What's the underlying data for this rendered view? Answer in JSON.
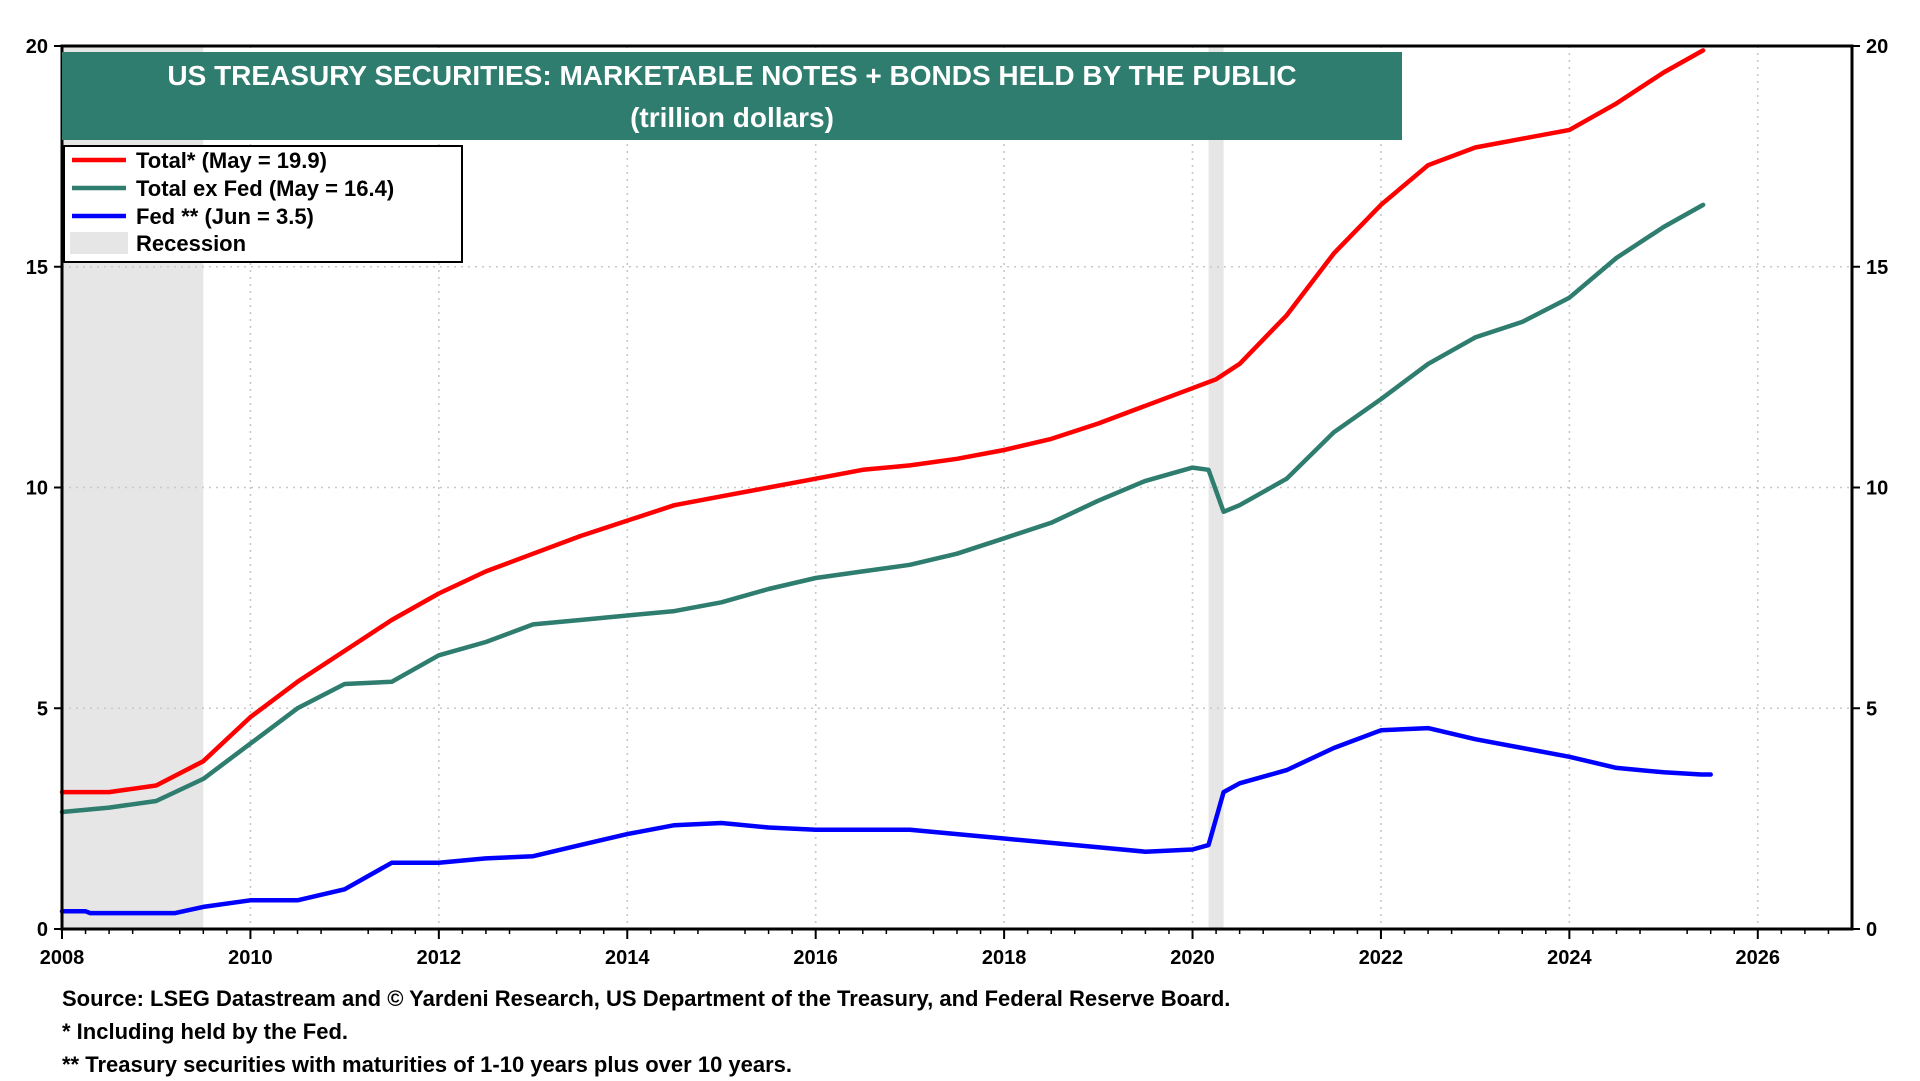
{
  "chart_data": {
    "type": "line",
    "title": "US TREASURY SECURITIES: MARKETABLE NOTES + BONDS HELD BY THE PUBLIC",
    "subtitle": "(trillion dollars)",
    "xlabel": "",
    "ylabel": "",
    "xlim": [
      2008,
      2027
    ],
    "ylim": [
      0,
      20
    ],
    "x_ticks": [
      "2008",
      "2010",
      "2012",
      "2014",
      "2016",
      "2018",
      "2020",
      "2022",
      "2024",
      "2026"
    ],
    "y_ticks": [
      "0",
      "5",
      "10",
      "15",
      "20"
    ],
    "y_axis_sides": "left and right",
    "grid": "dotted",
    "legend_position": "top-left",
    "recessions": [
      {
        "start": 2008.0,
        "end": 2009.5
      },
      {
        "start": 2020.17,
        "end": 2020.33
      }
    ],
    "series": [
      {
        "name": "Total* (May = 19.9)",
        "color": "#ff0000",
        "points": [
          [
            2008.0,
            3.1
          ],
          [
            2008.5,
            3.1
          ],
          [
            2009.0,
            3.25
          ],
          [
            2009.5,
            3.8
          ],
          [
            2010.0,
            4.8
          ],
          [
            2010.5,
            5.6
          ],
          [
            2011.0,
            6.3
          ],
          [
            2011.5,
            7.0
          ],
          [
            2012.0,
            7.6
          ],
          [
            2012.5,
            8.1
          ],
          [
            2013.0,
            8.5
          ],
          [
            2013.5,
            8.9
          ],
          [
            2014.0,
            9.25
          ],
          [
            2014.5,
            9.6
          ],
          [
            2015.0,
            9.8
          ],
          [
            2015.5,
            10.0
          ],
          [
            2016.0,
            10.2
          ],
          [
            2016.5,
            10.4
          ],
          [
            2017.0,
            10.5
          ],
          [
            2017.5,
            10.65
          ],
          [
            2018.0,
            10.85
          ],
          [
            2018.5,
            11.1
          ],
          [
            2019.0,
            11.45
          ],
          [
            2019.5,
            11.85
          ],
          [
            2020.0,
            12.25
          ],
          [
            2020.25,
            12.45
          ],
          [
            2020.5,
            12.8
          ],
          [
            2021.0,
            13.9
          ],
          [
            2021.5,
            15.3
          ],
          [
            2022.0,
            16.4
          ],
          [
            2022.5,
            17.3
          ],
          [
            2023.0,
            17.7
          ],
          [
            2023.5,
            17.9
          ],
          [
            2024.0,
            18.1
          ],
          [
            2024.5,
            18.7
          ],
          [
            2025.0,
            19.4
          ],
          [
            2025.42,
            19.9
          ]
        ]
      },
      {
        "name": "Total ex Fed (May = 16.4)",
        "color": "#2e7d6e",
        "points": [
          [
            2008.0,
            2.65
          ],
          [
            2008.5,
            2.75
          ],
          [
            2009.0,
            2.9
          ],
          [
            2009.5,
            3.4
          ],
          [
            2010.0,
            4.2
          ],
          [
            2010.5,
            5.0
          ],
          [
            2011.0,
            5.55
          ],
          [
            2011.5,
            5.6
          ],
          [
            2012.0,
            6.2
          ],
          [
            2012.5,
            6.5
          ],
          [
            2013.0,
            6.9
          ],
          [
            2013.5,
            7.0
          ],
          [
            2014.0,
            7.1
          ],
          [
            2014.5,
            7.2
          ],
          [
            2015.0,
            7.4
          ],
          [
            2015.5,
            7.7
          ],
          [
            2016.0,
            7.95
          ],
          [
            2016.5,
            8.1
          ],
          [
            2017.0,
            8.25
          ],
          [
            2017.5,
            8.5
          ],
          [
            2018.0,
            8.85
          ],
          [
            2018.5,
            9.2
          ],
          [
            2019.0,
            9.7
          ],
          [
            2019.5,
            10.15
          ],
          [
            2020.0,
            10.45
          ],
          [
            2020.17,
            10.4
          ],
          [
            2020.33,
            9.45
          ],
          [
            2020.5,
            9.6
          ],
          [
            2021.0,
            10.2
          ],
          [
            2021.5,
            11.25
          ],
          [
            2022.0,
            12.0
          ],
          [
            2022.5,
            12.8
          ],
          [
            2023.0,
            13.4
          ],
          [
            2023.5,
            13.75
          ],
          [
            2024.0,
            14.3
          ],
          [
            2024.5,
            15.2
          ],
          [
            2025.0,
            15.9
          ],
          [
            2025.42,
            16.4
          ]
        ]
      },
      {
        "name": "Fed ** (Jun = 3.5)",
        "color": "#0000ff",
        "points": [
          [
            2008.0,
            0.4
          ],
          [
            2008.25,
            0.4
          ],
          [
            2008.3,
            0.36
          ],
          [
            2009.2,
            0.36
          ],
          [
            2009.5,
            0.5
          ],
          [
            2010.0,
            0.65
          ],
          [
            2010.5,
            0.65
          ],
          [
            2011.0,
            0.9
          ],
          [
            2011.5,
            1.5
          ],
          [
            2012.0,
            1.5
          ],
          [
            2012.5,
            1.6
          ],
          [
            2013.0,
            1.65
          ],
          [
            2013.5,
            1.9
          ],
          [
            2014.0,
            2.15
          ],
          [
            2014.5,
            2.35
          ],
          [
            2015.0,
            2.4
          ],
          [
            2015.5,
            2.3
          ],
          [
            2016.0,
            2.25
          ],
          [
            2016.5,
            2.25
          ],
          [
            2017.0,
            2.25
          ],
          [
            2017.5,
            2.15
          ],
          [
            2018.0,
            2.05
          ],
          [
            2018.5,
            1.95
          ],
          [
            2019.0,
            1.85
          ],
          [
            2019.5,
            1.75
          ],
          [
            2020.0,
            1.8
          ],
          [
            2020.17,
            1.9
          ],
          [
            2020.33,
            3.1
          ],
          [
            2020.5,
            3.3
          ],
          [
            2021.0,
            3.6
          ],
          [
            2021.5,
            4.1
          ],
          [
            2022.0,
            4.5
          ],
          [
            2022.5,
            4.55
          ],
          [
            2023.0,
            4.3
          ],
          [
            2023.5,
            4.1
          ],
          [
            2024.0,
            3.9
          ],
          [
            2024.5,
            3.65
          ],
          [
            2025.0,
            3.55
          ],
          [
            2025.4,
            3.5
          ],
          [
            2025.5,
            3.5
          ]
        ]
      }
    ],
    "legend": [
      {
        "label": "Total* (May = 19.9)",
        "kind": "line",
        "color": "#ff0000"
      },
      {
        "label": "Total ex Fed (May = 16.4)",
        "kind": "line",
        "color": "#2e7d6e"
      },
      {
        "label": "Fed ** (Jun = 3.5)",
        "kind": "line",
        "color": "#0000ff"
      },
      {
        "label": "Recession",
        "kind": "box",
        "color": "#e6e6e6"
      }
    ],
    "title_box_color": "#2e7d6e"
  },
  "footnotes": {
    "source": "Source: LSEG Datastream and © Yardeni Research, US Department of the Treasury, and Federal Reserve Board.",
    "note1": "* Including held by the Fed.",
    "note2": "** Treasury securities with maturities of 1-10 years plus over 10 years."
  }
}
